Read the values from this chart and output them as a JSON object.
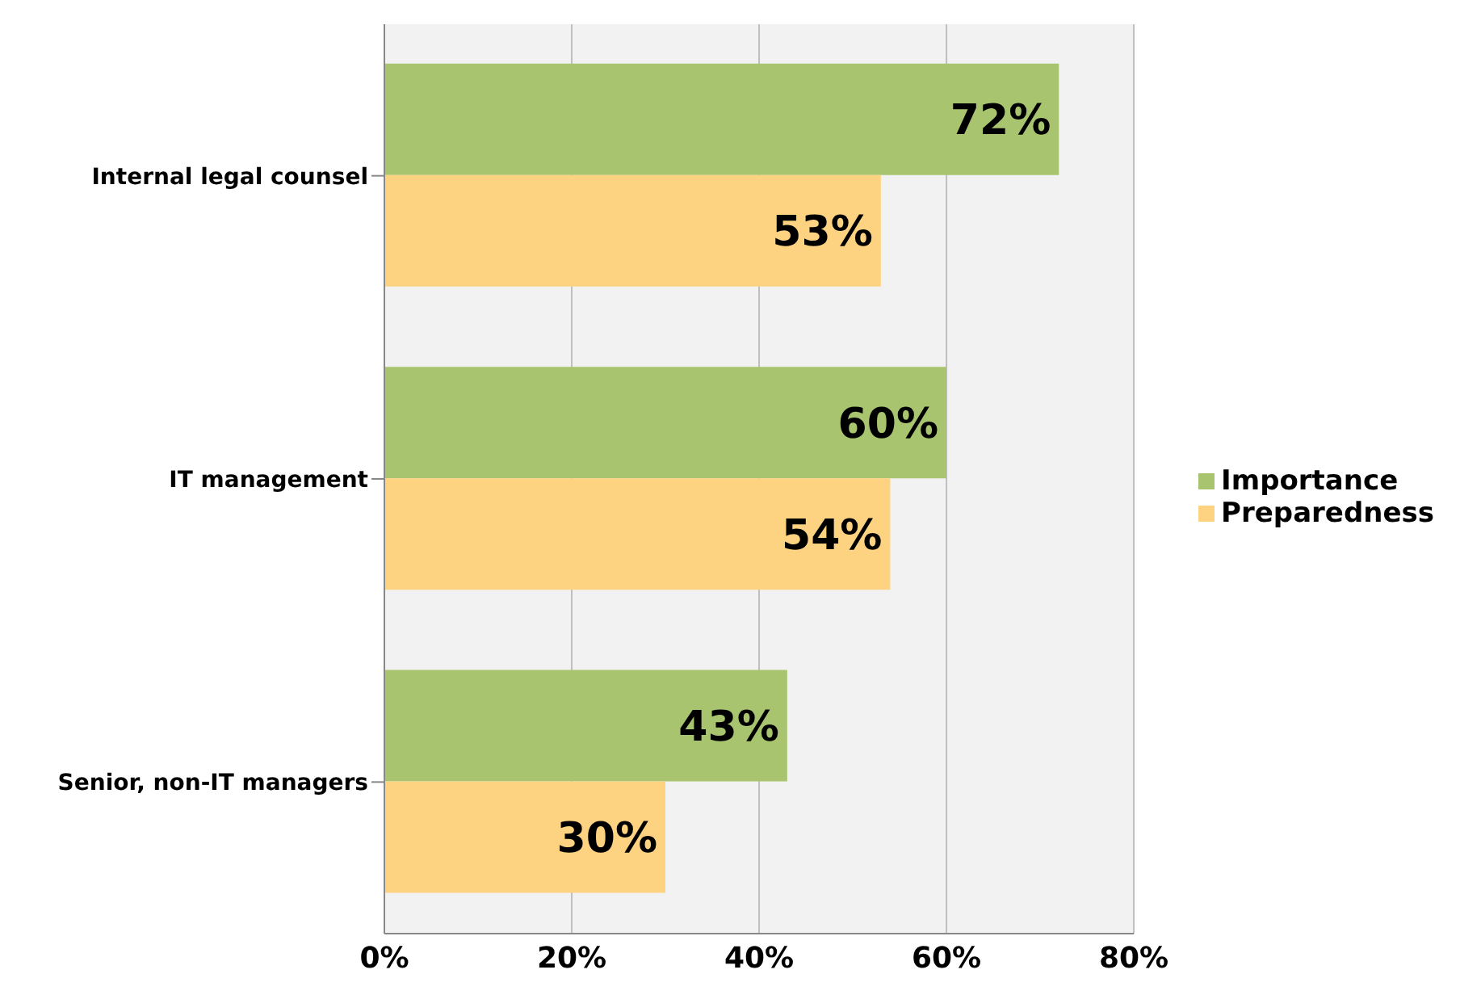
{
  "chart_data": {
    "type": "bar",
    "orientation": "horizontal",
    "categories": [
      "Internal legal counsel",
      "IT management",
      "Senior, non-IT managers"
    ],
    "series": [
      {
        "name": "Importance",
        "color": "#a9c46e",
        "values": [
          72,
          60,
          43
        ],
        "value_labels": [
          "72%",
          "60%",
          "43%"
        ]
      },
      {
        "name": "Preparedness",
        "color": "#fdd280",
        "values": [
          53,
          54,
          30
        ],
        "value_labels": [
          "53%",
          "54%",
          "30%"
        ]
      }
    ],
    "xlim": [
      0,
      80
    ],
    "xticks": [
      {
        "value": 0,
        "label": "0%"
      },
      {
        "value": 20,
        "label": "20%"
      },
      {
        "value": 40,
        "label": "40%"
      },
      {
        "value": 60,
        "label": "60%"
      },
      {
        "value": 80,
        "label": "80%"
      }
    ],
    "grid": "x",
    "legend": "right"
  }
}
